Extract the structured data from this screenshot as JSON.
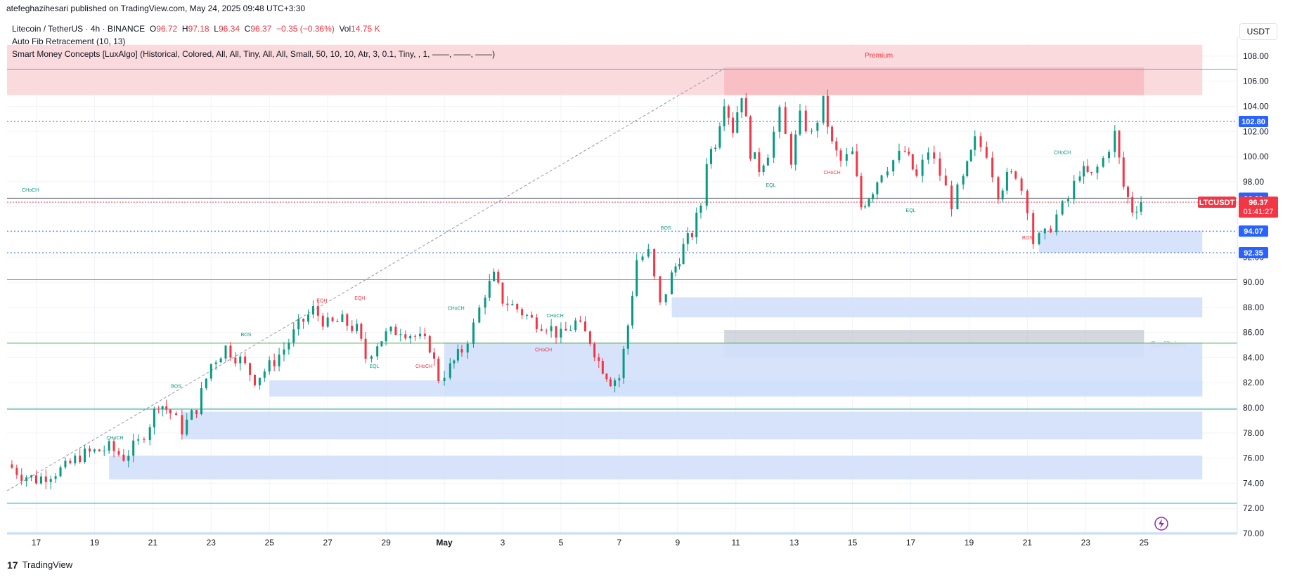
{
  "header": {
    "publisher_line": "atefeghazihesari published on TradingView.com, May 24, 2025 09:48 UTC+3:30"
  },
  "legend": {
    "symbol": "Litecoin / TetherUS · 4h · BINANCE",
    "open_label": "O",
    "open": "96.72",
    "high_label": "H",
    "high": "97.18",
    "low_label": "L",
    "low": "96.34",
    "close_label": "C",
    "close": "96.37",
    "change": "−0.35 (−0.36%)",
    "vol_label": "Vol",
    "vol": "14.75 K",
    "indicator_1": "Auto Fib Retracement (10, 13)",
    "indicator_2": "Smart Money Concepts [LuxAlgo] (Historical, Colored, All, All, Tiny, All, All, Small, 50, 10, 10, Atr, 3, 0.1, Tiny, , 1, ——, ——, ——)"
  },
  "currency_button": "USDT",
  "footer": {
    "brand": "TradingView",
    "logo_glyph": "17"
  },
  "colors": {
    "up": "#089981",
    "down": "#f23645",
    "blue": "#2962ff",
    "fvg_blue": "#d1e0fb",
    "premium": "#fbdadd",
    "premium_ob": "#f8b8bf",
    "equilibrium": "#b0b6c2",
    "grid": "#f0f3fa"
  },
  "chart_data": {
    "type": "candlestick",
    "symbol_tag": "LTCUSDT",
    "last_price": "96.37",
    "countdown": "01:41:27",
    "ylim": [
      70,
      109
    ],
    "y_ticks": [
      "70.00",
      "72.00",
      "74.00",
      "76.00",
      "78.00",
      "80.00",
      "82.00",
      "84.00",
      "86.00",
      "88.00",
      "90.00",
      "92.00",
      "94.00",
      "96.00",
      "98.00",
      "100.00",
      "102.00",
      "104.00",
      "106.00",
      "108.00"
    ],
    "price_tags": [
      {
        "label": "102.80",
        "value": 102.8
      },
      {
        "label": "96.69",
        "value": 96.69
      },
      {
        "label": "94.07",
        "value": 94.07
      },
      {
        "label": "92.35",
        "value": 92.35
      }
    ],
    "x_ticks": [
      {
        "label": "17",
        "day": 17
      },
      {
        "label": "19",
        "day": 19
      },
      {
        "label": "21",
        "day": 21
      },
      {
        "label": "23",
        "day": 23
      },
      {
        "label": "25",
        "day": 25
      },
      {
        "label": "27",
        "day": 27
      },
      {
        "label": "29",
        "day": 29
      },
      {
        "label": "May",
        "day": 31
      },
      {
        "label": "3",
        "day": 33
      },
      {
        "label": "5",
        "day": 35
      },
      {
        "label": "7",
        "day": 37
      },
      {
        "label": "9",
        "day": 39
      },
      {
        "label": "11",
        "day": 41
      },
      {
        "label": "13",
        "day": 43
      },
      {
        "label": "15",
        "day": 45
      },
      {
        "label": "17",
        "day": 47
      },
      {
        "label": "19",
        "day": 49
      },
      {
        "label": "21",
        "day": 51
      },
      {
        "label": "23",
        "day": 53
      },
      {
        "label": "25",
        "day": 55
      }
    ],
    "close_path": [
      [
        16.0,
        75.5
      ],
      [
        16.5,
        74.7
      ],
      [
        17.0,
        74.3
      ],
      [
        17.5,
        74.8
      ],
      [
        18.0,
        75.2
      ],
      [
        18.5,
        76.2
      ],
      [
        19.0,
        76.5
      ],
      [
        19.5,
        76.8
      ],
      [
        20.0,
        76.1
      ],
      [
        20.5,
        77.2
      ],
      [
        20.9,
        78.8
      ],
      [
        21.2,
        80.5
      ],
      [
        21.6,
        79.6
      ],
      [
        22.0,
        78.3
      ],
      [
        22.5,
        80.0
      ],
      [
        23.0,
        83.5
      ],
      [
        23.5,
        84.8
      ],
      [
        24.0,
        83.8
      ],
      [
        24.5,
        82.3
      ],
      [
        25.0,
        83.3
      ],
      [
        25.5,
        84.7
      ],
      [
        26.0,
        86.5
      ],
      [
        26.5,
        87.8
      ],
      [
        27.0,
        86.6
      ],
      [
        27.5,
        86.9
      ],
      [
        28.0,
        86.2
      ],
      [
        28.3,
        84.0
      ],
      [
        28.7,
        85.2
      ],
      [
        29.0,
        85.8
      ],
      [
        29.5,
        86.3
      ],
      [
        30.0,
        85.7
      ],
      [
        30.5,
        84.9
      ],
      [
        30.8,
        82.4
      ],
      [
        31.2,
        83.2
      ],
      [
        31.6,
        84.6
      ],
      [
        32.0,
        86.5
      ],
      [
        32.4,
        89.2
      ],
      [
        32.7,
        90.4
      ],
      [
        33.0,
        88.6
      ],
      [
        33.5,
        87.9
      ],
      [
        34.0,
        87.0
      ],
      [
        34.5,
        86.6
      ],
      [
        35.0,
        85.7
      ],
      [
        35.5,
        86.8
      ],
      [
        36.0,
        85.4
      ],
      [
        36.3,
        83.7
      ],
      [
        36.7,
        82.2
      ],
      [
        37.0,
        82.4
      ],
      [
        37.3,
        86.6
      ],
      [
        37.6,
        91.8
      ],
      [
        38.0,
        92.3
      ],
      [
        38.4,
        88.1
      ],
      [
        38.8,
        90.5
      ],
      [
        39.2,
        92.8
      ],
      [
        39.5,
        93.9
      ],
      [
        39.8,
        96.2
      ],
      [
        40.0,
        99.8
      ],
      [
        40.3,
        101.2
      ],
      [
        40.6,
        104.6
      ],
      [
        40.9,
        102.2
      ],
      [
        41.2,
        105.1
      ],
      [
        41.5,
        100.4
      ],
      [
        41.8,
        99.1
      ],
      [
        42.1,
        100.4
      ],
      [
        42.5,
        103.4
      ],
      [
        42.9,
        99.8
      ],
      [
        43.2,
        103.1
      ],
      [
        43.6,
        101.7
      ],
      [
        44.0,
        104.3
      ],
      [
        44.3,
        100.9
      ],
      [
        44.6,
        99.6
      ],
      [
        45.0,
        100.2
      ],
      [
        45.3,
        96.0
      ],
      [
        45.7,
        97.4
      ],
      [
        46.0,
        98.9
      ],
      [
        46.4,
        99.7
      ],
      [
        46.8,
        100.4
      ],
      [
        47.2,
        98.3
      ],
      [
        47.6,
        100.5
      ],
      [
        48.0,
        98.6
      ],
      [
        48.4,
        96.3
      ],
      [
        48.8,
        98.1
      ],
      [
        49.2,
        101.2
      ],
      [
        49.6,
        100.4
      ],
      [
        50.0,
        97.2
      ],
      [
        50.3,
        98.3
      ],
      [
        50.6,
        98.7
      ],
      [
        51.0,
        96.1
      ],
      [
        51.2,
        93.2
      ],
      [
        51.6,
        93.7
      ],
      [
        52.0,
        95.3
      ],
      [
        52.4,
        96.6
      ],
      [
        52.8,
        98.9
      ],
      [
        53.2,
        98.4
      ],
      [
        53.6,
        99.8
      ],
      [
        54.0,
        101.8
      ],
      [
        54.3,
        97.6
      ],
      [
        54.6,
        95.8
      ],
      [
        54.9,
        96.37
      ]
    ],
    "zones": [
      {
        "kind": "premium",
        "x1": 16,
        "x2": 57,
        "y1": 104.9,
        "y2": 108.9,
        "label": "Premium"
      },
      {
        "kind": "premium_ob",
        "x1": 40.6,
        "x2": 55,
        "y1": 104.9,
        "y2": 107.1
      },
      {
        "kind": "equilibrium",
        "x1": 40.6,
        "x2": 55,
        "y1": 84.0,
        "y2": 86.2,
        "label": "Equilibrium"
      },
      {
        "kind": "fvg",
        "x1": 51.4,
        "x2": 57,
        "y1": 92.35,
        "y2": 94.1
      },
      {
        "kind": "fvg",
        "x1": 38.8,
        "x2": 57,
        "y1": 87.2,
        "y2": 88.8
      },
      {
        "kind": "fvg",
        "x1": 31.0,
        "x2": 57,
        "y1": 81.0,
        "y2": 85.2
      },
      {
        "kind": "fvg",
        "x1": 25.0,
        "x2": 57,
        "y1": 80.9,
        "y2": 82.2
      },
      {
        "kind": "fvg",
        "x1": 22.0,
        "x2": 57,
        "y1": 77.5,
        "y2": 79.7
      },
      {
        "kind": "fvg",
        "x1": 19.5,
        "x2": 57,
        "y1": 74.3,
        "y2": 76.2
      }
    ],
    "structure_labels": [
      {
        "text": "CHoCH",
        "x": 19.7,
        "y": 77.5,
        "color": "up"
      },
      {
        "text": "BOS",
        "x": 21.8,
        "y": 81.6,
        "color": "up"
      },
      {
        "text": "BOS",
        "x": 24.2,
        "y": 85.7,
        "color": "up"
      },
      {
        "text": "EQH",
        "x": 26.8,
        "y": 88.4,
        "color": "down"
      },
      {
        "text": "EQH",
        "x": 28.1,
        "y": 88.6,
        "color": "down"
      },
      {
        "text": "EQL",
        "x": 28.6,
        "y": 83.2,
        "color": "up"
      },
      {
        "text": "CHoCH",
        "x": 30.3,
        "y": 83.2,
        "color": "down"
      },
      {
        "text": "CHoCH",
        "x": 31.4,
        "y": 87.8,
        "color": "up"
      },
      {
        "text": "CHoCH",
        "x": 34.8,
        "y": 87.2,
        "color": "up"
      },
      {
        "text": "CHoCH",
        "x": 34.4,
        "y": 84.5,
        "color": "down"
      },
      {
        "text": "BOS",
        "x": 38.6,
        "y": 94.2,
        "color": "up"
      },
      {
        "text": "EQL",
        "x": 42.2,
        "y": 97.6,
        "color": "up"
      },
      {
        "text": "CHoCH",
        "x": 44.3,
        "y": 98.6,
        "color": "down"
      },
      {
        "text": "EQL",
        "x": 47.0,
        "y": 95.6,
        "color": "up"
      },
      {
        "text": "BOS",
        "x": 51.0,
        "y": 93.4,
        "color": "down"
      },
      {
        "text": "CHoCH",
        "x": 52.2,
        "y": 100.2,
        "color": "up"
      },
      {
        "text": "CHoCH",
        "x": 16.8,
        "y": 97.2,
        "color": "up"
      }
    ]
  }
}
